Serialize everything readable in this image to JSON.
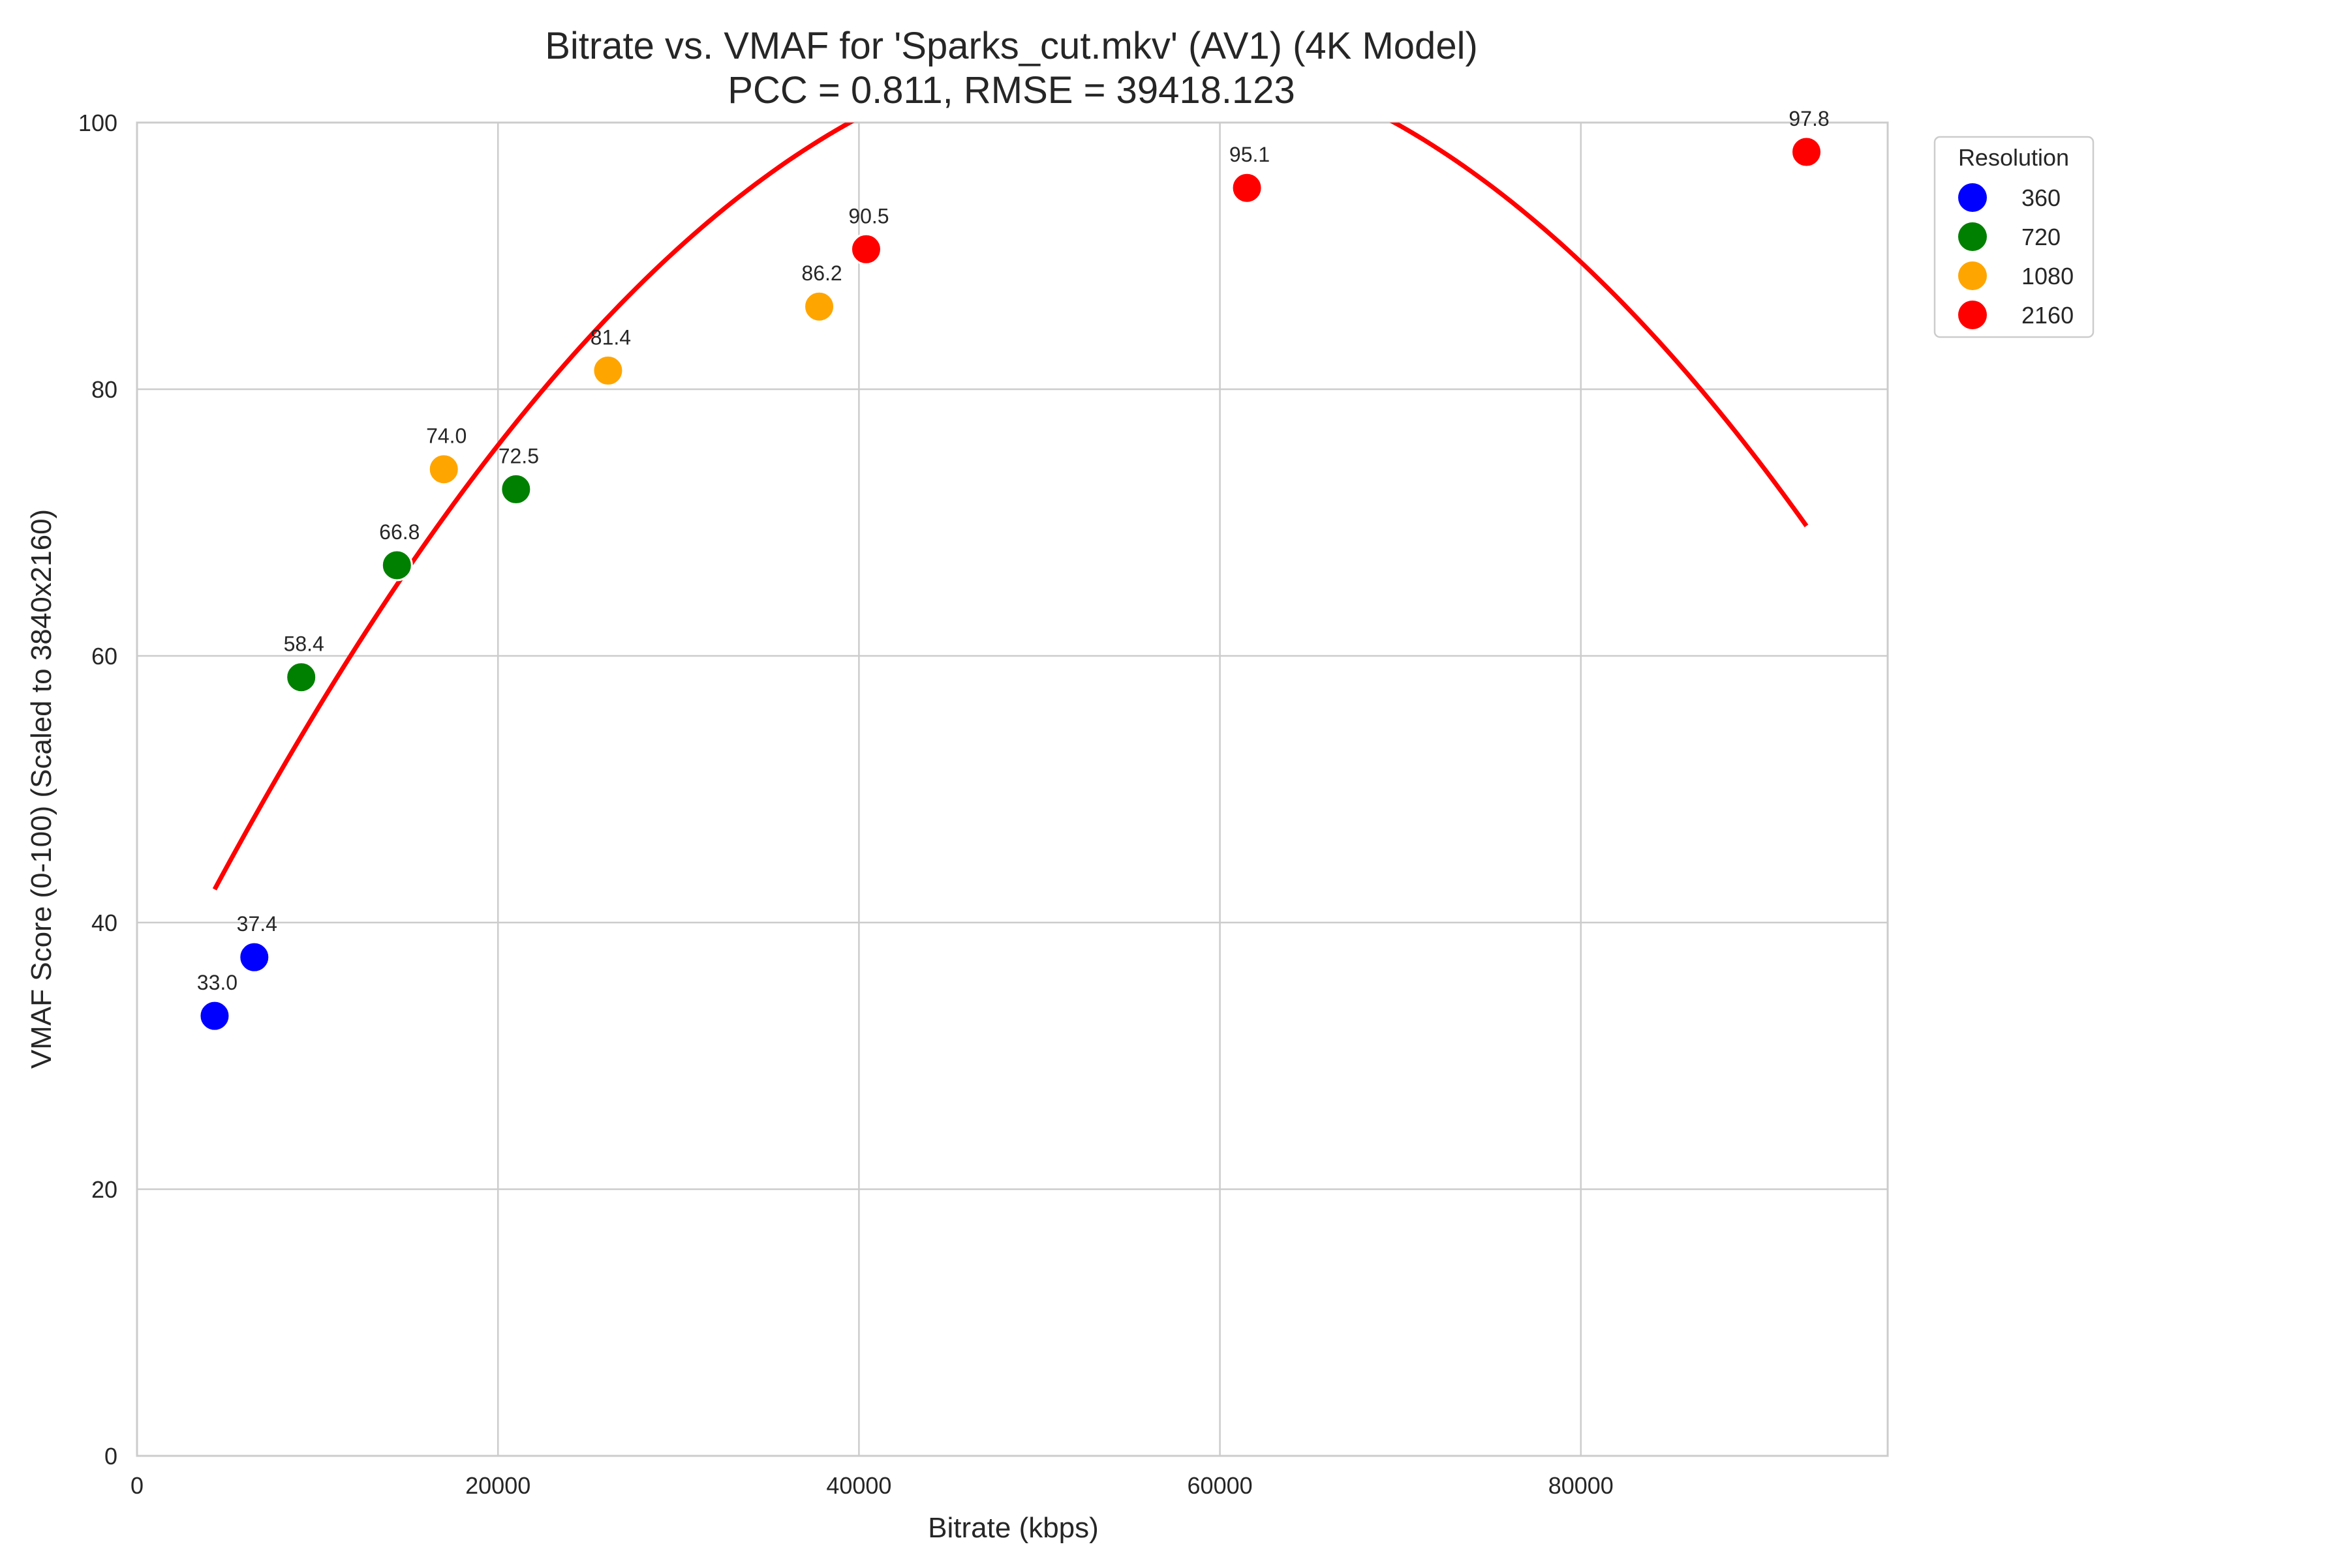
{
  "chart_data": {
    "type": "scatter",
    "title_line1": "Bitrate vs. VMAF for 'Sparks_cut.mkv' (AV1) (4K Model)",
    "title_line2": "PCC = 0.811, RMSE = 39418.123",
    "xlabel": "Bitrate (kbps)",
    "ylabel": "VMAF Score (0-100) (Scaled to 3840x2160)",
    "xlim": [
      0,
      97000
    ],
    "ylim": [
      0,
      100
    ],
    "x_ticks": [
      0,
      20000,
      40000,
      60000,
      80000
    ],
    "x_tick_labels": [
      "0",
      "20000",
      "40000",
      "60000",
      "80000"
    ],
    "y_ticks": [
      0,
      20,
      40,
      60,
      80,
      100
    ],
    "y_tick_labels": [
      "0",
      "20",
      "40",
      "60",
      "80",
      "100"
    ],
    "grid": true,
    "legend": {
      "title": "Resolution",
      "placement": "outside-top-right",
      "entries": [
        "360",
        "720",
        "1080",
        "2160"
      ]
    },
    "series": [
      {
        "name": "360",
        "color": "#0000ff",
        "points": [
          {
            "x": 4300,
            "y": 33.0,
            "label": "33.0"
          },
          {
            "x": 6500,
            "y": 37.4,
            "label": "37.4"
          }
        ]
      },
      {
        "name": "720",
        "color": "#008000",
        "points": [
          {
            "x": 9100,
            "y": 58.4,
            "label": "58.4"
          },
          {
            "x": 14400,
            "y": 66.8,
            "label": "66.8"
          },
          {
            "x": 21000,
            "y": 72.5,
            "label": "72.5"
          }
        ]
      },
      {
        "name": "1080",
        "color": "#ffa500",
        "points": [
          {
            "x": 17000,
            "y": 74.0,
            "label": "74.0"
          },
          {
            "x": 26100,
            "y": 81.4,
            "label": "81.4"
          },
          {
            "x": 37800,
            "y": 86.2,
            "label": "86.2"
          }
        ]
      },
      {
        "name": "2160",
        "color": "#ff0000",
        "points": [
          {
            "x": 40400,
            "y": 90.5,
            "label": "90.5"
          },
          {
            "x": 61500,
            "y": 95.1,
            "label": "95.1"
          },
          {
            "x": 92500,
            "y": 97.8,
            "label": "97.8"
          }
        ]
      }
    ],
    "fit_curve": {
      "type": "quadratic",
      "color": "#ff0000",
      "coefficients": [
        31.22,
        0.002729,
        -2.5e-08
      ],
      "x_range": [
        4300,
        92500
      ]
    }
  }
}
